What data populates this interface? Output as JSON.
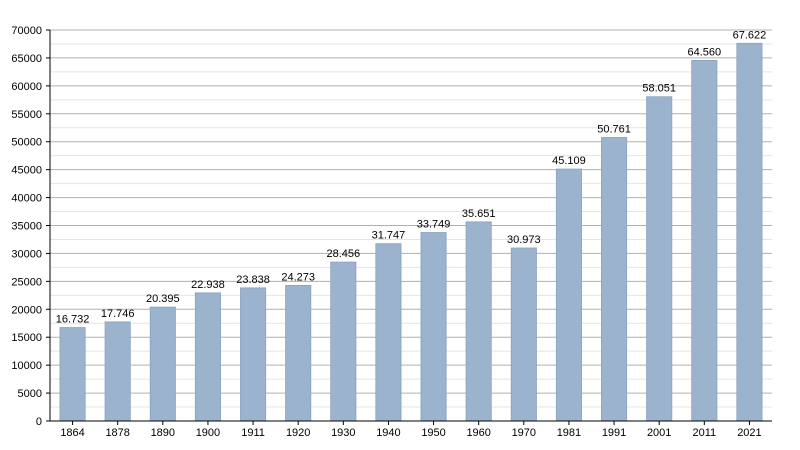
{
  "chart_data": {
    "type": "bar",
    "title": "",
    "xlabel": "",
    "ylabel": "",
    "categories": [
      "1864",
      "1878",
      "1890",
      "1900",
      "1911",
      "1920",
      "1930",
      "1940",
      "1950",
      "1960",
      "1970",
      "1981",
      "1991",
      "2001",
      "2011",
      "2021"
    ],
    "values": [
      16732,
      17746,
      20395,
      22938,
      23838,
      24273,
      28456,
      31747,
      33749,
      35651,
      30973,
      45109,
      50761,
      58051,
      64560,
      67622
    ],
    "data_labels": [
      "16.732",
      "17.746",
      "20.395",
      "22.938",
      "23.838",
      "24.273",
      "28.456",
      "31.747",
      "33.749",
      "35.651",
      "30.973",
      "45.109",
      "50.761",
      "58.051",
      "64.560",
      "67.622"
    ],
    "ylim": [
      0,
      70000
    ],
    "yticks": [
      0,
      5000,
      10000,
      15000,
      20000,
      25000,
      30000,
      35000,
      40000,
      45000,
      50000,
      55000,
      60000,
      65000,
      70000
    ],
    "grid": true,
    "legend": "none",
    "bar_color": "#9bb3cd",
    "bar_edge_color": "#8aa3bf",
    "grid_color": "#b0b0b0"
  }
}
